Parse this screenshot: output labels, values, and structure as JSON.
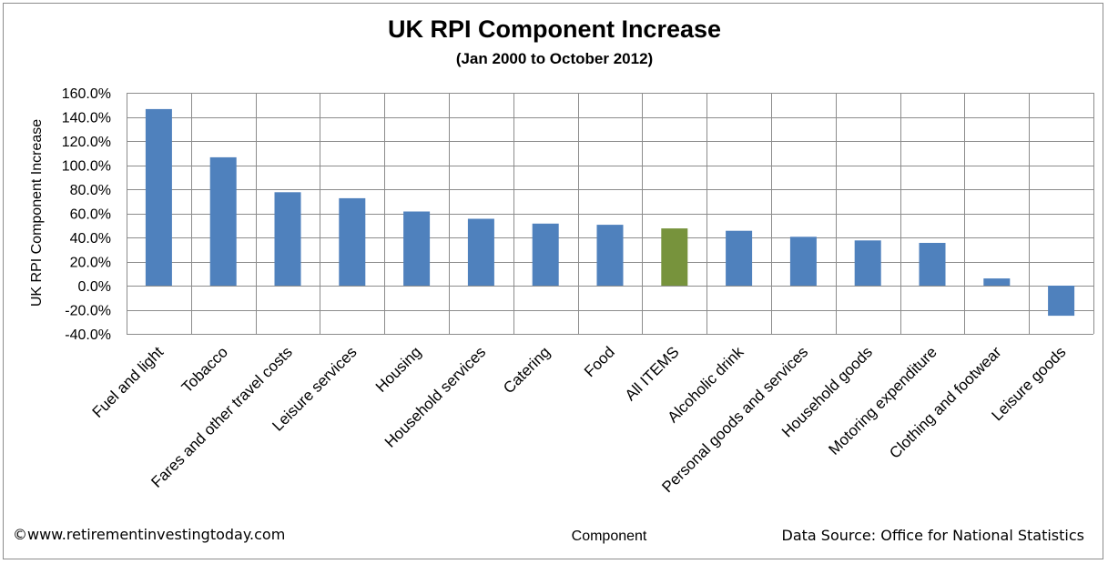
{
  "chart_data": {
    "type": "bar",
    "title": "UK RPI Component Increase",
    "subtitle": "(Jan 2000 to  October 2012)",
    "xlabel": "Component",
    "ylabel": "UK RPI Component  Increase",
    "ylim": [
      -40,
      160
    ],
    "ytick_step": 20,
    "ytick_labels": [
      "160.0%",
      "140.0%",
      "120.0%",
      "100.0%",
      "80.0%",
      "60.0%",
      "40.0%",
      "20.0%",
      "0.0%",
      "-20.0%",
      "-40.0%"
    ],
    "grid": true,
    "categories": [
      "Fuel and light",
      "Tobacco",
      "Fares and other travel costs",
      "Leisure services",
      "Housing",
      "Household services",
      "Catering",
      "Food",
      "All ITEMS",
      "Alcoholic drink",
      "Personal goods and services",
      "Household goods",
      "Motoring expenditure",
      "Clothing and footwear",
      "Leisure goods"
    ],
    "values": [
      146.5,
      106.5,
      77.5,
      72.5,
      61.5,
      55.5,
      51.5,
      50.5,
      47.5,
      45.5,
      40.5,
      37.5,
      35.5,
      6.0,
      -25.0
    ],
    "highlight_category": "All ITEMS",
    "colors": {
      "bar": "#4f81bd",
      "highlight": "#77933c",
      "grid": "#8c8c8c"
    }
  },
  "footer": {
    "copyright": "©www.retirementinvestingtoday.com",
    "source": "Data Source: Office for National Statistics"
  }
}
